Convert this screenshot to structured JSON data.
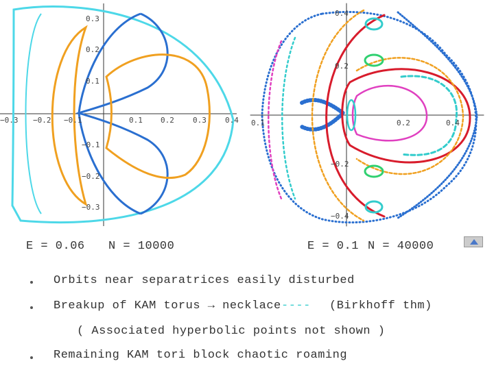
{
  "left_plot": {
    "x_ticks": [
      "−0.3",
      "−0.2",
      "−0.1",
      "0.1",
      "0.2",
      "0.3",
      "0.4"
    ],
    "y_ticks": [
      "0.3",
      "0.2",
      "0.1",
      "−0.1",
      "−0.2",
      "−0.3"
    ],
    "energy": "E = 0.06",
    "count": "N = 10000"
  },
  "right_plot": {
    "x_ticks": [
      "0.1",
      "0.2",
      "0.4"
    ],
    "y_ticks": [
      "0.4",
      "0.2",
      "−0.2",
      "−0.4"
    ],
    "energy": "E = 0.1",
    "count": "N = 40000"
  },
  "bullets": [
    "Orbits near separatrices easily disturbed",
    "Breakup of KAM torus → necklace",
    "Remaining KAM tori block chaotic roaming"
  ],
  "necklace_mark": "----",
  "birkhoff": "(Birkhoff thm)",
  "note": "( Associated hyperbolic points not shown )"
}
